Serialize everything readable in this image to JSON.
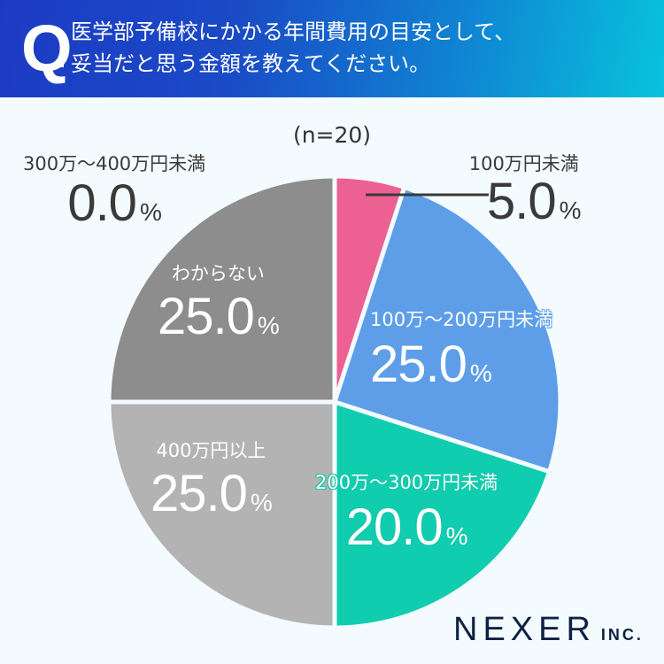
{
  "header": {
    "q_mark": "Q",
    "question_line1": "医学部予備校にかかる年間費用の目安として、",
    "question_line2": "妥当だと思う金額を教えてください。"
  },
  "sample": "(n=20)",
  "chart_data": {
    "type": "pie",
    "title": "医学部予備校にかかる年間費用の目安として、妥当だと思う金額を教えてください。",
    "subtitle": "(n=20)",
    "start_angle": "12 o'clock, clockwise",
    "categories": [
      "100万円未満",
      "100万～200万円未満",
      "200万～300万円未満",
      "300万～400万円未満",
      "400万円以上",
      "わからない"
    ],
    "values": [
      5.0,
      25.0,
      20.0,
      0.0,
      25.0,
      25.0
    ],
    "unit": "%",
    "colors": [
      "#ec6191",
      "#5e9ee8",
      "#10cdb0",
      "#8e8e8e",
      "#b3b3b3",
      "#8e8d8e"
    ]
  },
  "labels": [
    {
      "category": "100万円未満",
      "value": "5.0",
      "unit": "%"
    },
    {
      "category": "100万～200万円未満",
      "value": "25.0",
      "unit": "%"
    },
    {
      "category": "200万～300万円未満",
      "value": "20.0",
      "unit": "%"
    },
    {
      "category": "300万～400万円未満",
      "value": "0.0",
      "unit": "%"
    },
    {
      "category": "400万円以上",
      "value": "25.0",
      "unit": "%"
    },
    {
      "category": "わからない",
      "value": "25.0",
      "unit": "%"
    }
  ],
  "logo": {
    "name": "NEXER",
    "suffix": "INC."
  }
}
